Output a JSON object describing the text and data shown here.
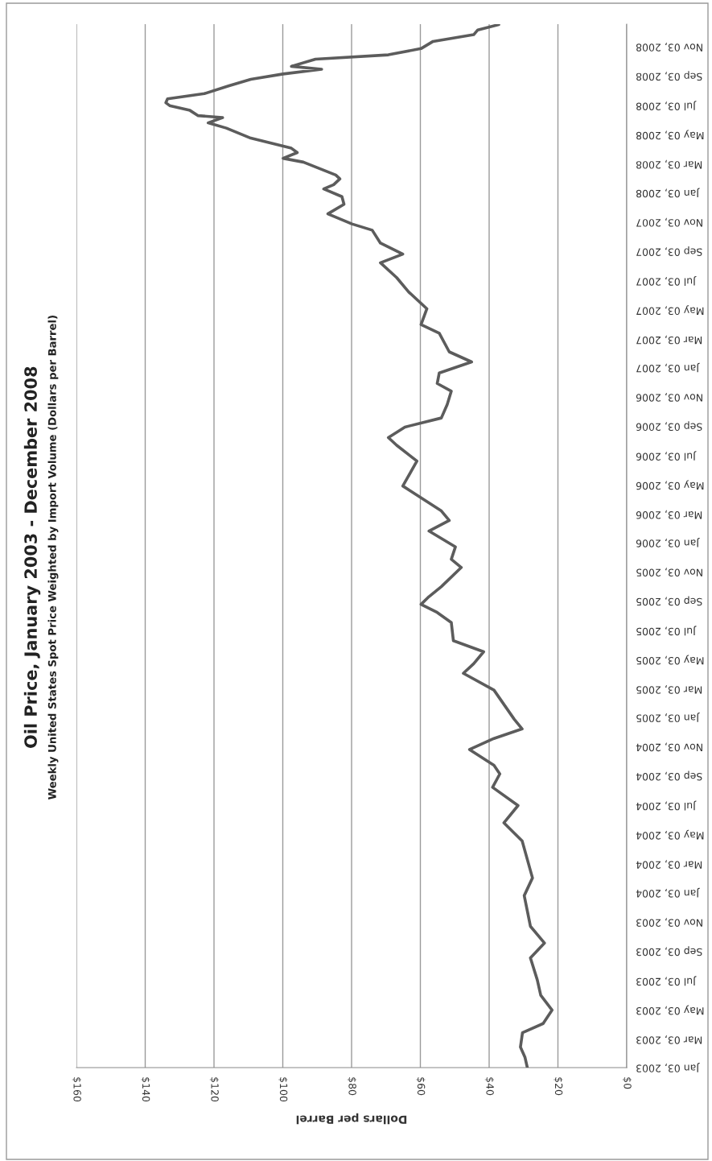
{
  "chart_data": {
    "type": "line",
    "title": "Oil Price, January 2003 - December 2008",
    "subtitle": "Weekly United States Spot Price Weighted by Import Volume (Dollars per Barrel)",
    "xlabel": "Dollars per Barrel",
    "orientation": "horizontal",
    "x": [
      "2003-01-03",
      "2003-01-25",
      "2003-02-15",
      "2003-03-17",
      "2003-04-05",
      "2003-05-03",
      "2003-06-03",
      "2003-07-05",
      "2003-08-20",
      "2003-09-20",
      "2003-10-25",
      "2003-12-28",
      "2004-02-03",
      "2004-04-20",
      "2004-05-28",
      "2004-07-03",
      "2004-08-10",
      "2004-09-07",
      "2004-09-25",
      "2004-10-28",
      "2004-11-20",
      "2004-12-10",
      "2004-12-30",
      "2005-03-01",
      "2005-04-05",
      "2005-04-25",
      "2005-05-20",
      "2005-06-12",
      "2005-07-20",
      "2005-08-10",
      "2005-08-27",
      "2005-09-12",
      "2005-10-03",
      "2005-11-12",
      "2005-11-29",
      "2005-12-25",
      "2006-01-27",
      "2006-02-18",
      "2006-03-10",
      "2006-05-01",
      "2006-06-22",
      "2006-07-25",
      "2006-08-10",
      "2006-09-01",
      "2006-09-20",
      "2006-10-18",
      "2006-11-15",
      "2006-12-01",
      "2006-12-23",
      "2007-01-15",
      "2007-02-05",
      "2007-03-16",
      "2007-04-03",
      "2007-05-06",
      "2007-06-10",
      "2007-07-10",
      "2007-08-10",
      "2007-08-28",
      "2007-09-20",
      "2007-10-17",
      "2007-10-30",
      "2007-11-20",
      "2007-12-10",
      "2007-12-26",
      "2008-01-11",
      "2008-01-20",
      "2008-02-01",
      "2008-02-09",
      "2008-03-07",
      "2008-03-15",
      "2008-03-27",
      "2008-04-05",
      "2008-04-26",
      "2008-05-17",
      "2008-05-28",
      "2008-06-08",
      "2008-06-12",
      "2008-06-23",
      "2008-07-03",
      "2008-07-09",
      "2008-07-17",
      "2008-07-28",
      "2008-08-13",
      "2008-08-27",
      "2008-09-07",
      "2008-09-17",
      "2008-09-23",
      "2008-10-08",
      "2008-10-17",
      "2008-10-30",
      "2008-11-14",
      "2008-11-28",
      "2008-12-08",
      "2008-12-19"
    ],
    "series": [
      {
        "color": "#5c5c5c",
        "values": [
          28.9,
          29.6,
          30.9,
          30.3,
          24.3,
          21.7,
          25.0,
          26.0,
          28.0,
          23.9,
          28.0,
          29.8,
          27.4,
          30.4,
          35.7,
          31.6,
          39.0,
          36.9,
          38.6,
          45.7,
          38.6,
          30.4,
          32.7,
          38.6,
          47.5,
          44.5,
          41.6,
          50.4,
          51.0,
          55.1,
          59.8,
          57.5,
          53.9,
          48.1,
          51.0,
          49.8,
          57.5,
          51.6,
          53.9,
          65.1,
          61.0,
          66.9,
          69.3,
          64.5,
          53.9,
          52.2,
          51.0,
          55.1,
          54.5,
          45.1,
          51.6,
          54.5,
          59.8,
          58.1,
          63.4,
          66.9,
          71.6,
          65.1,
          71.6,
          74.0,
          79.9,
          86.9,
          82.2,
          82.8,
          88.1,
          85.2,
          83.4,
          84.6,
          94.0,
          99.9,
          95.8,
          97.5,
          109.3,
          116.4,
          121.7,
          117.5,
          124.6,
          127.0,
          132.9,
          134.0,
          133.5,
          122.8,
          115.8,
          109.3,
          99.9,
          88.7,
          97.5,
          90.5,
          69.3,
          59.8,
          56.3,
          44.5,
          43.3,
          37.2
        ]
      }
    ],
    "ylim": [
      "2003-01-03",
      "2008-12-20"
    ],
    "yticks": [
      {
        "value": "2003-01-03",
        "label": "Jan 03, 2003"
      },
      {
        "value": "2003-03-03",
        "label": "Mar 03, 2003"
      },
      {
        "value": "2003-05-03",
        "label": "May 03, 2003"
      },
      {
        "value": "2003-07-03",
        "label": "Jul 03, 2003"
      },
      {
        "value": "2003-09-03",
        "label": "Sep 03, 2003"
      },
      {
        "value": "2003-11-03",
        "label": "Nov 03, 2003"
      },
      {
        "value": "2004-01-03",
        "label": "Jan 03, 2004"
      },
      {
        "value": "2004-03-03",
        "label": "Mar 03, 2004"
      },
      {
        "value": "2004-05-03",
        "label": "May 03, 2004"
      },
      {
        "value": "2004-07-03",
        "label": "Jul 03, 2004"
      },
      {
        "value": "2004-09-03",
        "label": "Sep 03, 2004"
      },
      {
        "value": "2004-11-03",
        "label": "Nov 03, 2004"
      },
      {
        "value": "2005-01-03",
        "label": "Jan 03, 2005"
      },
      {
        "value": "2005-03-03",
        "label": "Mar 03, 2005"
      },
      {
        "value": "2005-05-03",
        "label": "May 03, 2005"
      },
      {
        "value": "2005-07-03",
        "label": "Jul 03, 2005"
      },
      {
        "value": "2005-09-03",
        "label": "Sep 03, 2005"
      },
      {
        "value": "2005-11-03",
        "label": "Nov 03, 2005"
      },
      {
        "value": "2006-01-03",
        "label": "Jan 03, 2006"
      },
      {
        "value": "2006-03-03",
        "label": "Mar 03, 2006"
      },
      {
        "value": "2006-05-03",
        "label": "May 03, 2006"
      },
      {
        "value": "2006-07-03",
        "label": "Jul 03, 2006"
      },
      {
        "value": "2006-09-03",
        "label": "Sep 03, 2006"
      },
      {
        "value": "2006-11-03",
        "label": "Nov 03, 2006"
      },
      {
        "value": "2007-01-03",
        "label": "Jan 03, 2007"
      },
      {
        "value": "2007-03-03",
        "label": "Mar 03, 2007"
      },
      {
        "value": "2007-05-03",
        "label": "May 03, 2007"
      },
      {
        "value": "2007-07-03",
        "label": "Jul 03, 2007"
      },
      {
        "value": "2007-09-03",
        "label": "Sep 03, 2007"
      },
      {
        "value": "2007-11-03",
        "label": "Nov 03, 2007"
      },
      {
        "value": "2008-01-03",
        "label": "Jan 03, 2008"
      },
      {
        "value": "2008-03-03",
        "label": "Mar 03, 2008"
      },
      {
        "value": "2008-05-03",
        "label": "May 03, 2008"
      },
      {
        "value": "2008-07-03",
        "label": "Jul 03, 2008"
      },
      {
        "value": "2008-09-03",
        "label": "Sep 03, 2008"
      },
      {
        "value": "2008-11-03",
        "label": "Nov 03, 2008"
      }
    ],
    "xlim": [
      160,
      0
    ],
    "xticks": [
      {
        "value": 0,
        "label": "$0"
      },
      {
        "value": 20,
        "label": "$20"
      },
      {
        "value": 40,
        "label": "$40"
      },
      {
        "value": 60,
        "label": "$60"
      },
      {
        "value": 80,
        "label": "$80"
      },
      {
        "value": 100,
        "label": "$100"
      },
      {
        "value": 120,
        "label": "$120"
      },
      {
        "value": 140,
        "label": "$140"
      },
      {
        "value": 160,
        "label": "$160"
      }
    ],
    "grid": "x",
    "line_style": "solid",
    "marker": "none"
  }
}
